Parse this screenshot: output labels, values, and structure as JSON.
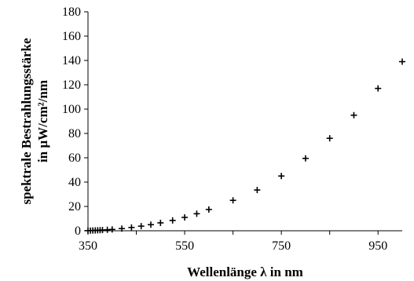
{
  "chart_data": {
    "type": "scatter",
    "title": "",
    "xlabel": "Wellenlänge λ in nm",
    "ylabel_lines": [
      "spektrale Bestrahlungsstärke",
      "in µW/cm²/nm"
    ],
    "xlim": [
      350,
      1000
    ],
    "ylim": [
      0,
      180
    ],
    "x_ticks": [
      350,
      550,
      750,
      950
    ],
    "y_ticks": [
      0,
      20,
      40,
      60,
      80,
      100,
      120,
      140,
      160,
      180
    ],
    "grid": false,
    "marker": "plus",
    "marker_color": "#000000",
    "series": [
      {
        "x": [
          350,
          355,
          360,
          365,
          370,
          375,
          380,
          390,
          400,
          420,
          440,
          460,
          480,
          500,
          525,
          550,
          575,
          600,
          650,
          700,
          750,
          800,
          850,
          900,
          950,
          1000
        ],
        "y": [
          0.1,
          0.15,
          0.2,
          0.3,
          0.4,
          0.5,
          0.6,
          0.8,
          1.1,
          1.8,
          2.7,
          3.8,
          5.0,
          6.5,
          8.5,
          11,
          14,
          17.5,
          25,
          33.5,
          45,
          59.5,
          76,
          95,
          117,
          139
        ]
      }
    ]
  }
}
